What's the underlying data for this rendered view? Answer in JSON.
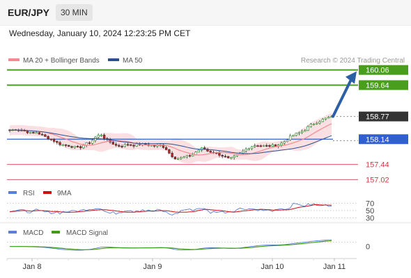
{
  "header": {
    "pair": "EUR/JPY",
    "timeframe": "30 MIN",
    "datetime": "Wednesday, January 10, 2024 12:23:25 PM CET"
  },
  "attribution": "Research © 2024 Trading Central",
  "colors": {
    "green": "#4a9e1e",
    "blue": "#2f5fd0",
    "red": "#e05a62",
    "dark": "#333333",
    "arrow": "#2b5fa6",
    "band": "#f9d5d9",
    "ma50": "#2c4f8f",
    "rsi": "#5b7fd4",
    "nineMA": "#cc1111",
    "macd": "#5b7fd4",
    "macdSignal": "#3f9c1a"
  },
  "legend_main": [
    {
      "label": "MA 20 + Bollinger Bands",
      "color": "#f4898f"
    },
    {
      "label": "MA 50",
      "color": "#2c4f8f"
    }
  ],
  "legend_rsi": [
    {
      "label": "RSI",
      "color": "#5b7fd4"
    },
    {
      "label": "9MA",
      "color": "#cc1111"
    }
  ],
  "legend_macd": [
    {
      "label": "MACD",
      "color": "#5b7fd4"
    },
    {
      "label": "MACD Signal",
      "color": "#3f9c1a"
    }
  ],
  "chart_data": [
    {
      "type": "candlestick",
      "ylim": [
        156.95,
        160.15
      ],
      "levels": [
        {
          "label": "160.06",
          "value": 160.06,
          "style": "green"
        },
        {
          "label": "159.64",
          "value": 159.64,
          "style": "green"
        },
        {
          "label": "158.77",
          "value": 158.77,
          "style": "dark"
        },
        {
          "label": "158.14",
          "value": 158.14,
          "style": "blue"
        },
        {
          "label": "157.44",
          "value": 157.44,
          "style": "red"
        },
        {
          "label": "157.02",
          "value": 157.02,
          "style": "red"
        }
      ],
      "x_ticks": [
        "Jan 8",
        "Jan 9",
        "Jan 10",
        "Jan 11"
      ],
      "close_path": [
        158.38,
        158.42,
        158.4,
        158.36,
        158.3,
        158.33,
        158.25,
        158.18,
        158.12,
        158.02,
        157.98,
        157.96,
        157.92,
        157.9,
        158.0,
        158.05,
        158.2,
        158.28,
        158.12,
        158.04,
        157.95,
        157.96,
        158.0,
        157.97,
        157.99,
        158.0,
        157.98,
        157.95,
        157.98,
        157.9,
        157.7,
        157.6,
        157.62,
        157.66,
        157.7,
        157.82,
        157.9,
        157.8,
        157.78,
        157.72,
        157.66,
        157.58,
        157.66,
        157.75,
        157.86,
        157.94,
        157.98,
        157.96,
        157.95,
        157.96,
        157.98,
        158.05,
        158.18,
        158.26,
        158.32,
        158.4,
        158.52,
        158.6,
        158.66,
        158.72,
        158.77
      ],
      "projection": {
        "from": 158.77,
        "to": 160.06
      }
    },
    {
      "type": "line",
      "name": "RSI",
      "levels": [
        70,
        50,
        30
      ],
      "level_labels": [
        "70",
        "50",
        "30"
      ],
      "ylim": [
        25,
        75
      ]
    },
    {
      "type": "line",
      "name": "MACD",
      "zero_label": "0",
      "ylim": [
        -0.3,
        0.25
      ]
    }
  ]
}
